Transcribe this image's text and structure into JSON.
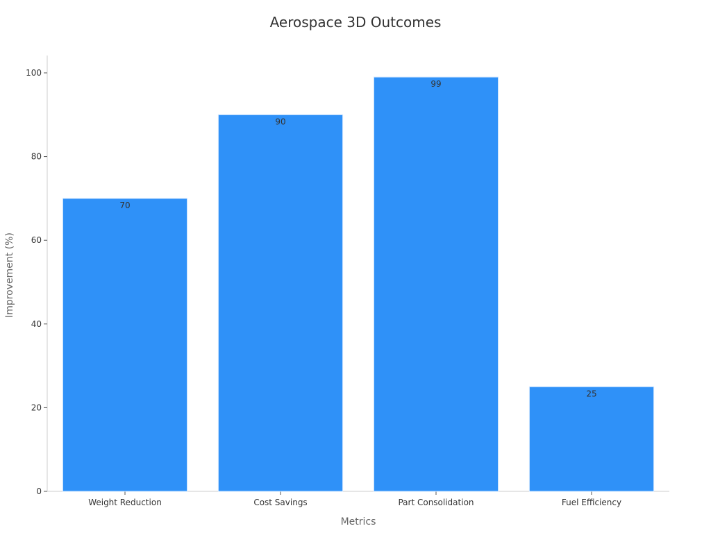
{
  "chart_data": {
    "type": "bar",
    "title": "Aerospace 3D Outcomes",
    "xlabel": "Metrics",
    "ylabel": "Improvement (%)",
    "categories": [
      "Weight Reduction",
      "Cost Savings",
      "Part Consolidation",
      "Fuel Efficiency"
    ],
    "values": [
      70,
      90,
      99,
      25
    ],
    "data_labels": [
      "70",
      "90",
      "99",
      "25"
    ],
    "ylim": [
      0,
      100
    ],
    "yticks": [
      0,
      20,
      40,
      60,
      80,
      100
    ],
    "grid": false,
    "legend": "none",
    "colors": {
      "bar": "#2f91f8",
      "axis": "#cccccc",
      "text": "#333333",
      "axis_title": "#666666"
    }
  }
}
